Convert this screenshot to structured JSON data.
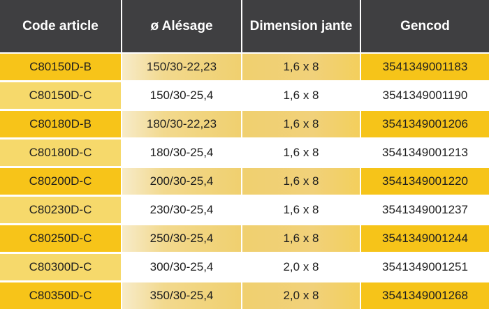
{
  "table": {
    "headers": [
      "Code article",
      "ø Alésage",
      "Dimension jante",
      "Gencod"
    ],
    "rows": [
      [
        "C80150D-B",
        "150/30-22,23",
        "1,6 x 8",
        "3541349001183"
      ],
      [
        "C80150D-C",
        "150/30-25,4",
        "1,6 x 8",
        "3541349001190"
      ],
      [
        "C80180D-B",
        "180/30-22,23",
        "1,6 x 8",
        "3541349001206"
      ],
      [
        "C80180D-C",
        "180/30-25,4",
        "1,6 x 8",
        "3541349001213"
      ],
      [
        "C80200D-C",
        "200/30-25,4",
        "1,6 x 8",
        "3541349001220"
      ],
      [
        "C80230D-C",
        "230/30-25,4",
        "1,6 x 8",
        "3541349001237"
      ],
      [
        "C80250D-C",
        "250/30-25,4",
        "1,6 x 8",
        "3541349001244"
      ],
      [
        "C80300D-C",
        "300/30-25,4",
        "2,0 x 8",
        "3541349001251"
      ],
      [
        "C80350D-C",
        "350/30-25,4",
        "2,0 x 8",
        "3541349001268"
      ]
    ]
  },
  "colors": {
    "header_bg": "#3f3f41",
    "header_text": "#ffffff",
    "accent_yellow": "#f6c518",
    "light_yellow": "#f6d96b",
    "row_white": "#ffffff"
  }
}
